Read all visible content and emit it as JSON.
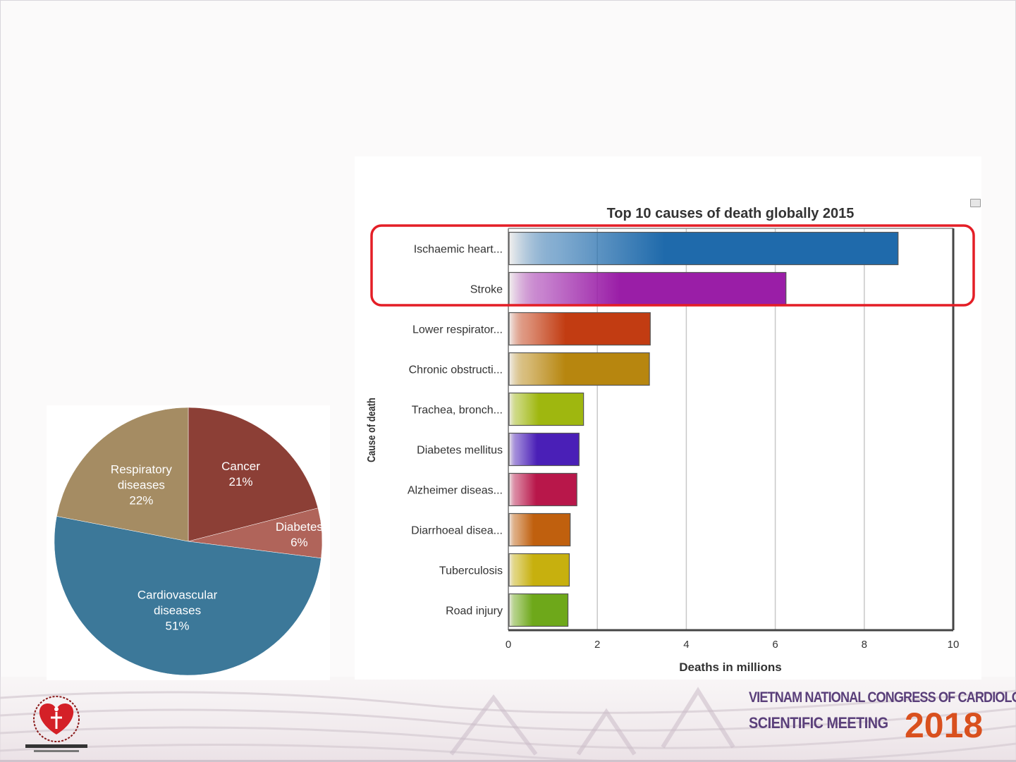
{
  "footer": {
    "congress_line1": "VIETNAM NATIONAL CONGRESS OF CARDIOLOGY",
    "congress_line2": "SCIENTIFIC MEETING",
    "congress_year": "2018",
    "logo_icon": "heart-society-logo-icon"
  },
  "colors": {
    "highlight": "#e41e26",
    "pie_cancer": "#8c3f36",
    "pie_diabetes": "#b0645a",
    "pie_cardiovascular": "#3c7899",
    "pie_respiratory": "#a58c63"
  },
  "chart_data": [
    {
      "type": "pie",
      "title": "",
      "slices": [
        {
          "label": [
            "Cancer",
            "21%"
          ],
          "value": 21,
          "color": "#8c3f36"
        },
        {
          "label": [
            "Diabetes",
            "6%"
          ],
          "value": 6,
          "color": "#b0645a"
        },
        {
          "label": [
            "Cardiovascular",
            "diseases",
            "51%"
          ],
          "value": 51,
          "color": "#3c7899"
        },
        {
          "label": [
            "Respiratory",
            "diseases",
            "22%"
          ],
          "value": 22,
          "color": "#a58c63"
        }
      ],
      "start_angle_deg": 0,
      "direction": "clockwise"
    },
    {
      "type": "bar",
      "orientation": "horizontal",
      "title": "Top 10 causes of death globally 2015",
      "xlabel": "Deaths in millions",
      "ylabel": "Cause of death",
      "xlim": [
        0,
        10
      ],
      "xticks": [
        0,
        2,
        4,
        6,
        8,
        10
      ],
      "grid": "vertical",
      "categories": [
        "Ischaemic heart...",
        "Stroke",
        "Lower respirator...",
        "Chronic obstructi...",
        "Trachea, bronch...",
        "Diabetes mellitus",
        "Alzheimer diseas...",
        "Diarrhoeal disea...",
        "Tuberculosis",
        "Road injury"
      ],
      "values": [
        8.76,
        6.24,
        3.19,
        3.17,
        1.69,
        1.59,
        1.54,
        1.39,
        1.37,
        1.34
      ],
      "colors": [
        "#1f6aab",
        "#9a1ea7",
        "#c23c12",
        "#b7860f",
        "#9fb70f",
        "#4a1fb7",
        "#b8174a",
        "#c0600e",
        "#c7b00e",
        "#6ea81a"
      ],
      "highlighted_categories": [
        "Ischaemic heart...",
        "Stroke"
      ]
    }
  ]
}
